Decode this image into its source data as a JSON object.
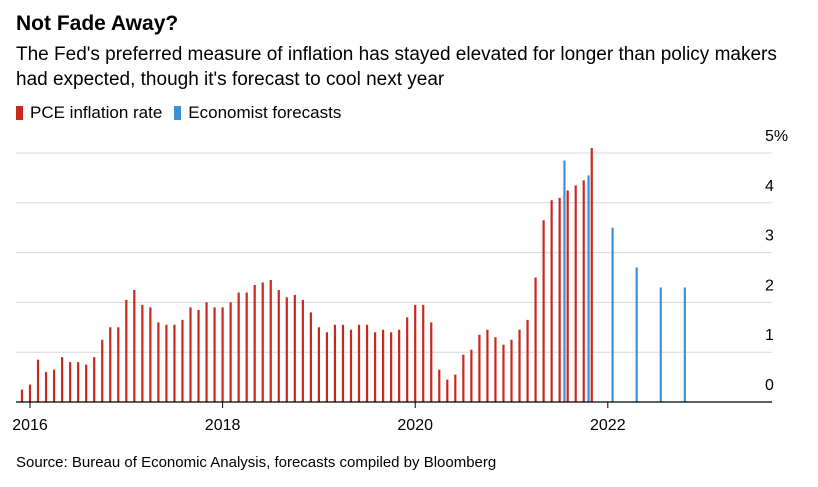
{
  "chart_data": {
    "type": "bar",
    "title": "Not Fade Away?",
    "subtitle": "The Fed's preferred measure of inflation has stayed elevated for longer than policy makers had expected, though it's forecast to cool next year",
    "source": "Source: Bureau of Economic Analysis, forecasts compiled by Bloomberg",
    "ylim": [
      0,
      5
    ],
    "y_ticks": [
      {
        "value": 5,
        "label": "5%"
      },
      {
        "value": 4,
        "label": "4"
      },
      {
        "value": 3,
        "label": "3"
      },
      {
        "value": 2,
        "label": "2"
      },
      {
        "value": 1,
        "label": "1"
      },
      {
        "value": 0,
        "label": "0"
      }
    ],
    "x_ticks": [
      {
        "value": 2016,
        "label": "2016"
      },
      {
        "value": 2018,
        "label": "2018"
      },
      {
        "value": 2020,
        "label": "2020"
      },
      {
        "value": 2022,
        "label": "2022"
      }
    ],
    "grid": true,
    "legend_position": "top-left",
    "series": [
      {
        "name": "PCE inflation rate",
        "color": "#c8281e",
        "start": "2015-12",
        "frequency": "monthly",
        "values": [
          0.25,
          0.35,
          0.85,
          0.6,
          0.65,
          0.9,
          0.8,
          0.8,
          0.75,
          0.9,
          1.25,
          1.5,
          1.5,
          2.05,
          2.25,
          1.95,
          1.9,
          1.6,
          1.55,
          1.55,
          1.65,
          1.9,
          1.85,
          2.0,
          1.9,
          1.9,
          2.0,
          2.2,
          2.2,
          2.35,
          2.4,
          2.45,
          2.25,
          2.1,
          2.15,
          2.05,
          1.8,
          1.5,
          1.4,
          1.55,
          1.55,
          1.45,
          1.55,
          1.55,
          1.4,
          1.45,
          1.4,
          1.45,
          1.7,
          1.95,
          1.95,
          1.6,
          0.65,
          0.45,
          0.55,
          0.95,
          1.05,
          1.35,
          1.45,
          1.3,
          1.15,
          1.25,
          1.45,
          1.65,
          2.5,
          3.65,
          4.05,
          4.1,
          4.25,
          4.35,
          4.45,
          5.1
        ]
      },
      {
        "name": "Economist forecasts",
        "color": "#3d8fd6",
        "x": [
          "2021-Q4",
          "2022-Q1",
          "2022-Q2",
          "2022-Q3",
          "2022-Q4",
          "2023-Q1"
        ],
        "values": [
          4.85,
          4.55,
          3.5,
          2.7,
          2.3,
          2.3
        ]
      }
    ]
  }
}
